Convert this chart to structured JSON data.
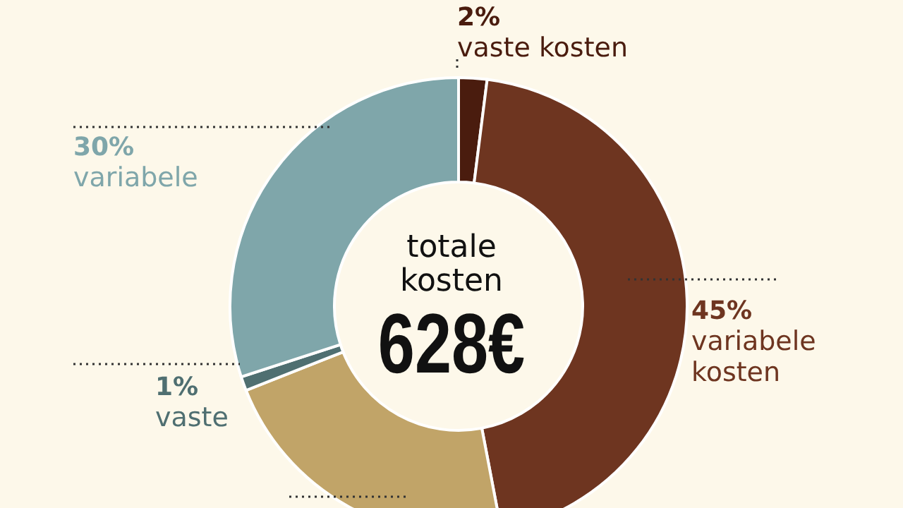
{
  "chart_data": {
    "type": "donut",
    "categories": [
      "vaste kosten",
      "variabele kosten",
      null,
      "vaste",
      "variabele"
    ],
    "values": [
      2,
      45,
      22,
      1,
      30
    ],
    "value_labels": [
      "2%",
      "45%",
      null,
      "1%",
      "30%"
    ],
    "colors": [
      "#4a1c0e",
      "#6e3520",
      "#c1a468",
      "#4f6f71",
      "#7fa6aa"
    ],
    "annotations": [
      "totale kosten",
      "628€"
    ]
  }
}
